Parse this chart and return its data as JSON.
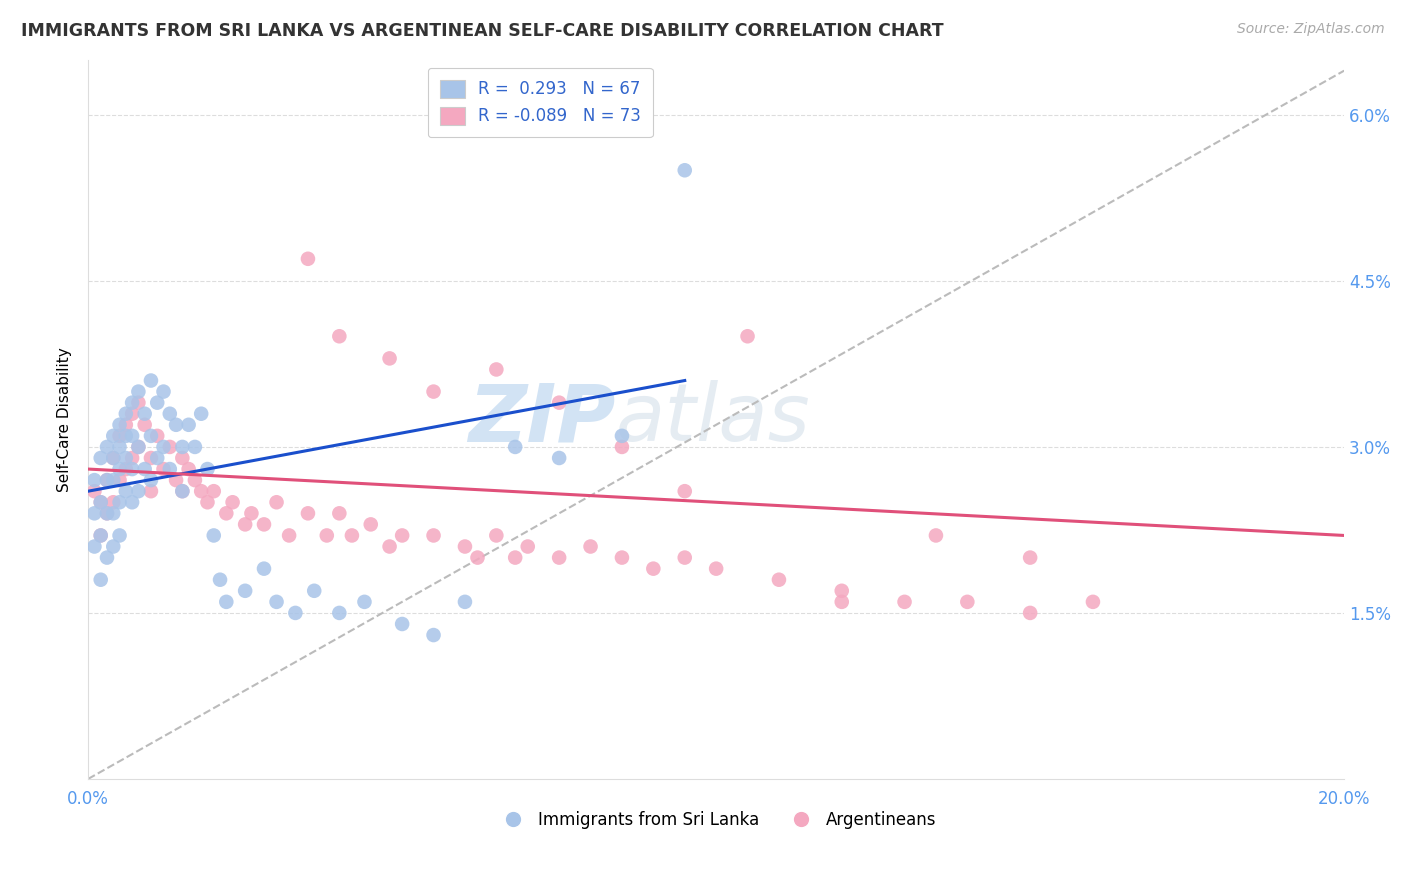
{
  "title": "IMMIGRANTS FROM SRI LANKA VS ARGENTINEAN SELF-CARE DISABILITY CORRELATION CHART",
  "source": "Source: ZipAtlas.com",
  "ylabel": "Self-Care Disability",
  "yticks": [
    "1.5%",
    "3.0%",
    "4.5%",
    "6.0%"
  ],
  "ytick_vals": [
    0.015,
    0.03,
    0.045,
    0.06
  ],
  "xlim": [
    0.0,
    0.2
  ],
  "ylim": [
    0.0,
    0.065
  ],
  "legend_r1": "R =  0.293   N = 67",
  "legend_r2": "R = -0.089   N = 73",
  "watermark_zip": "ZIP",
  "watermark_atlas": "atlas",
  "blue_color": "#a8c4e8",
  "pink_color": "#f4a8c0",
  "trendline_blue": "#1a4fcc",
  "trendline_pink": "#e0507a",
  "trendline_gray": "#bbbbbb",
  "sri_lanka_x": [
    0.001,
    0.001,
    0.001,
    0.002,
    0.002,
    0.002,
    0.002,
    0.003,
    0.003,
    0.003,
    0.003,
    0.004,
    0.004,
    0.004,
    0.004,
    0.004,
    0.005,
    0.005,
    0.005,
    0.005,
    0.005,
    0.006,
    0.006,
    0.006,
    0.006,
    0.007,
    0.007,
    0.007,
    0.007,
    0.008,
    0.008,
    0.008,
    0.009,
    0.009,
    0.01,
    0.01,
    0.01,
    0.011,
    0.011,
    0.012,
    0.012,
    0.013,
    0.013,
    0.014,
    0.015,
    0.015,
    0.016,
    0.017,
    0.018,
    0.019,
    0.02,
    0.021,
    0.022,
    0.025,
    0.028,
    0.03,
    0.033,
    0.036,
    0.04,
    0.044,
    0.05,
    0.055,
    0.06,
    0.068,
    0.075,
    0.085,
    0.095
  ],
  "sri_lanka_y": [
    0.027,
    0.024,
    0.021,
    0.029,
    0.025,
    0.022,
    0.018,
    0.03,
    0.027,
    0.024,
    0.02,
    0.031,
    0.029,
    0.027,
    0.024,
    0.021,
    0.032,
    0.03,
    0.028,
    0.025,
    0.022,
    0.033,
    0.031,
    0.029,
    0.026,
    0.034,
    0.031,
    0.028,
    0.025,
    0.035,
    0.03,
    0.026,
    0.033,
    0.028,
    0.036,
    0.031,
    0.027,
    0.034,
    0.029,
    0.035,
    0.03,
    0.033,
    0.028,
    0.032,
    0.03,
    0.026,
    0.032,
    0.03,
    0.033,
    0.028,
    0.022,
    0.018,
    0.016,
    0.017,
    0.019,
    0.016,
    0.015,
    0.017,
    0.015,
    0.016,
    0.014,
    0.013,
    0.016,
    0.03,
    0.029,
    0.031,
    0.055
  ],
  "argentina_x": [
    0.001,
    0.002,
    0.002,
    0.003,
    0.003,
    0.004,
    0.004,
    0.005,
    0.005,
    0.006,
    0.006,
    0.007,
    0.007,
    0.008,
    0.008,
    0.009,
    0.01,
    0.01,
    0.011,
    0.012,
    0.013,
    0.014,
    0.015,
    0.015,
    0.016,
    0.017,
    0.018,
    0.019,
    0.02,
    0.022,
    0.023,
    0.025,
    0.026,
    0.028,
    0.03,
    0.032,
    0.035,
    0.038,
    0.04,
    0.042,
    0.045,
    0.048,
    0.05,
    0.055,
    0.06,
    0.062,
    0.065,
    0.068,
    0.07,
    0.075,
    0.08,
    0.085,
    0.09,
    0.095,
    0.1,
    0.11,
    0.12,
    0.13,
    0.14,
    0.15,
    0.035,
    0.04,
    0.048,
    0.055,
    0.065,
    0.075,
    0.085,
    0.095,
    0.105,
    0.12,
    0.135,
    0.15,
    0.16
  ],
  "argentina_y": [
    0.026,
    0.025,
    0.022,
    0.027,
    0.024,
    0.029,
    0.025,
    0.031,
    0.027,
    0.032,
    0.028,
    0.033,
    0.029,
    0.034,
    0.03,
    0.032,
    0.029,
    0.026,
    0.031,
    0.028,
    0.03,
    0.027,
    0.029,
    0.026,
    0.028,
    0.027,
    0.026,
    0.025,
    0.026,
    0.024,
    0.025,
    0.023,
    0.024,
    0.023,
    0.025,
    0.022,
    0.024,
    0.022,
    0.024,
    0.022,
    0.023,
    0.021,
    0.022,
    0.022,
    0.021,
    0.02,
    0.022,
    0.02,
    0.021,
    0.02,
    0.021,
    0.02,
    0.019,
    0.02,
    0.019,
    0.018,
    0.017,
    0.016,
    0.016,
    0.015,
    0.047,
    0.04,
    0.038,
    0.035,
    0.037,
    0.034,
    0.03,
    0.026,
    0.04,
    0.016,
    0.022,
    0.02,
    0.016
  ]
}
